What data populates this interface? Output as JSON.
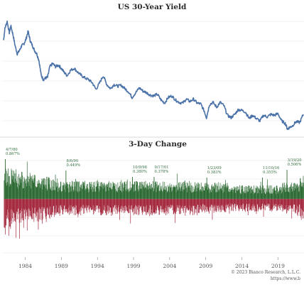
{
  "chart_data": [
    {
      "type": "line",
      "title": "US 30-Year Yield",
      "xlim": [
        1981,
        2022.6
      ],
      "x_ticks": [
        1984,
        1989,
        1994,
        1999,
        2004,
        2009,
        2014,
        2019
      ],
      "ylim": [
        1.0,
        15.5
      ],
      "grid": true,
      "series": [
        {
          "x": [
            1981.0,
            1981.2,
            1981.5,
            1981.8,
            1982.0,
            1982.3,
            1982.6,
            1982.9,
            1983.2,
            1983.5,
            1983.8,
            1984.1,
            1984.4,
            1984.7,
            1985.0,
            1985.3,
            1985.6,
            1985.9,
            1986.2,
            1986.5,
            1986.8,
            1987.1,
            1987.4,
            1987.8,
            1988.2,
            1988.6,
            1989.0,
            1989.4,
            1989.8,
            1990.3,
            1990.8,
            1991.3,
            1991.8,
            1992.3,
            1992.8,
            1993.3,
            1993.8,
            1994.3,
            1994.8,
            1995.3,
            1995.8,
            1996.3,
            1996.8,
            1997.3,
            1997.8,
            1998.3,
            1998.8,
            1999.3,
            1999.8,
            2000.3,
            2000.8,
            2001.3,
            2001.8,
            2002.3,
            2002.8,
            2003.3,
            2003.8,
            2004.3,
            2004.8,
            2005.3,
            2005.8,
            2006.3,
            2006.8,
            2007.3,
            2007.8,
            2008.3,
            2008.8,
            2009.1,
            2009.5,
            2010.0,
            2010.5,
            2011.0,
            2011.5,
            2012.0,
            2012.5,
            2013.0,
            2013.5,
            2014.0,
            2014.5,
            2015.0,
            2015.5,
            2016.0,
            2016.5,
            2017.0,
            2017.5,
            2018.0,
            2018.5,
            2019.0,
            2019.5,
            2020.0,
            2020.3,
            2020.6,
            2021.0,
            2021.5,
            2022.0,
            2022.5
          ],
          "y": [
            12.3,
            13.8,
            14.6,
            13.2,
            14.1,
            13.0,
            11.6,
            10.6,
            11.0,
            11.6,
            11.8,
            12.4,
            13.4,
            12.2,
            11.6,
            11.0,
            10.6,
            9.8,
            8.0,
            7.4,
            7.6,
            7.7,
            9.0,
            9.4,
            9.0,
            9.2,
            8.8,
            8.3,
            7.9,
            8.6,
            8.8,
            8.3,
            7.9,
            7.6,
            7.4,
            7.0,
            6.2,
            7.0,
            7.9,
            6.8,
            6.3,
            6.8,
            6.6,
            6.7,
            6.3,
            5.9,
            5.2,
            5.8,
            6.4,
            6.0,
            5.8,
            5.5,
            5.4,
            5.6,
            4.9,
            4.5,
            5.2,
            5.4,
            4.9,
            4.6,
            4.5,
            5.0,
            4.7,
            5.0,
            4.5,
            4.4,
            3.5,
            2.7,
            4.3,
            4.6,
            4.0,
            4.6,
            4.2,
            3.0,
            2.7,
            3.1,
            3.7,
            3.6,
            3.4,
            2.6,
            3.0,
            2.6,
            2.3,
            3.0,
            2.8,
            3.1,
            3.0,
            3.2,
            2.3,
            2.0,
            1.3,
            1.5,
            1.7,
            2.2,
            2.1,
            3.1
          ]
        }
      ]
    },
    {
      "type": "bar",
      "title": "3-Day Change",
      "xlim": [
        1981,
        2022.6
      ],
      "x_ticks": [
        1984,
        1989,
        1994,
        1999,
        2004,
        2009,
        2014,
        2019
      ],
      "positive_color": "#2e6b35",
      "negative_color": "#a52a3f",
      "annotations": [
        {
          "x": 1981.2,
          "date": "4/7/80",
          "value": "0.867%"
        },
        {
          "x": 1989.6,
          "date": "8/6/90",
          "value": "0.449%"
        },
        {
          "x": 1998.8,
          "date": "10/9/98",
          "value": "0.380%"
        },
        {
          "x": 2001.8,
          "date": "9/17/01",
          "value": "0.378%"
        },
        {
          "x": 2009.1,
          "date": "1/23/09",
          "value": "0.383%"
        },
        {
          "x": 2016.8,
          "date": "11/10/16",
          "value": "0.355%"
        },
        {
          "x": 2020.2,
          "date": "3/19/20",
          "value": "0.506%"
        }
      ]
    }
  ],
  "footer": {
    "copyright": "© 2023 Bianco Research, L.L.C.",
    "url": "https://www.b"
  }
}
